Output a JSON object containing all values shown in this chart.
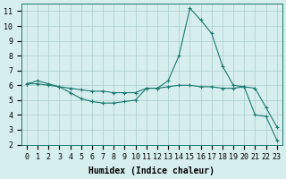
{
  "xlabel": "Humidex (Indice chaleur)",
  "ylabel": "",
  "background_color": "#d6eeed",
  "grid_color": "#aacccc",
  "line_color": "#1a7a6e",
  "x_data": [
    0,
    1,
    2,
    3,
    4,
    5,
    6,
    7,
    8,
    9,
    10,
    11,
    12,
    13,
    14,
    15,
    16,
    17,
    18,
    19,
    20,
    21,
    22,
    23
  ],
  "y_series1": [
    6.1,
    6.3,
    6.1,
    5.9,
    5.5,
    5.1,
    4.9,
    4.8,
    4.8,
    4.9,
    5.0,
    5.8,
    5.8,
    6.3,
    8.0,
    11.2,
    10.4,
    9.5,
    7.3,
    6.0,
    5.9,
    4.0,
    3.9,
    2.3
  ],
  "y_series2": [
    6.1,
    6.1,
    6.0,
    5.9,
    5.8,
    5.7,
    5.6,
    5.6,
    5.5,
    5.5,
    5.5,
    5.8,
    5.8,
    5.9,
    6.0,
    6.0,
    5.9,
    5.9,
    5.8,
    5.8,
    5.9,
    5.8,
    4.5,
    3.2
  ],
  "ylim": [
    2,
    11.5
  ],
  "xlim": [
    -0.5,
    23.5
  ],
  "yticks": [
    2,
    3,
    4,
    5,
    6,
    7,
    8,
    9,
    10,
    11
  ],
  "xticks": [
    0,
    1,
    2,
    3,
    4,
    5,
    6,
    7,
    8,
    9,
    10,
    11,
    12,
    13,
    14,
    15,
    16,
    17,
    18,
    19,
    20,
    21,
    22,
    23
  ],
  "title_fontsize": 7,
  "label_fontsize": 7,
  "tick_fontsize": 6
}
